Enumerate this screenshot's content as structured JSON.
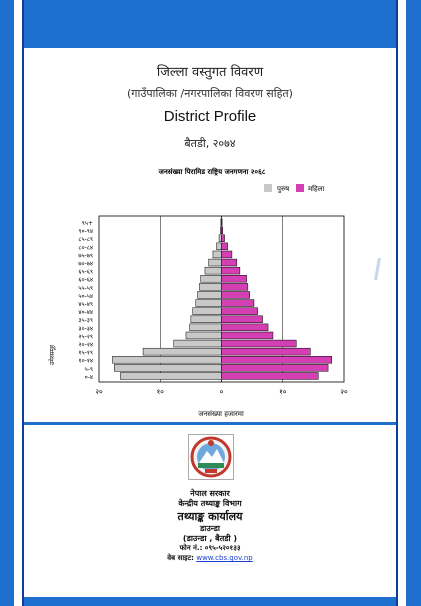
{
  "header": {
    "title_np": "जिल्ला वस्तुगत विवरण",
    "subtitle_np": "(गाउँपालिका /नगरपालिका विवरण सहित)",
    "title_en": "District Profile",
    "district_year": "बैतडी, २०७४"
  },
  "chart_data": {
    "type": "bar",
    "title": "जनसंख्या पिरामिड राष्ट्रिय जनगणना २०६८",
    "legend": [
      "पुरुष",
      "महिला"
    ],
    "legend_position": "top-right",
    "xlabel": "जनसंख्या हजारमा",
    "ylabel": "उमेरसमूह",
    "xlim": [
      -20,
      20
    ],
    "x_ticks": [
      "२०",
      "१०",
      "०",
      "१०",
      "२०"
    ],
    "colors": {
      "male": "#c8c8c8",
      "female": "#d43fb3"
    },
    "categories": [
      "०-४",
      "५-९",
      "१०-१४",
      "१५-१९",
      "२०-२४",
      "२५-२९",
      "३०-३४",
      "३५-३९",
      "४०-४४",
      "४५-४९",
      "५०-५४",
      "५५-५९",
      "६०-६४",
      "६५-६९",
      "७०-७४",
      "७५-७९",
      "८०-८४",
      "८५-८९",
      "९०-९४",
      "९५+"
    ],
    "series": [
      {
        "name": "पुरुष",
        "values": [
          16.5,
          17.5,
          17.8,
          12.8,
          7.8,
          5.8,
          5.2,
          5.0,
          4.7,
          4.2,
          3.9,
          3.6,
          3.4,
          2.7,
          2.1,
          1.4,
          0.8,
          0.4,
          0.2,
          0.1
        ]
      },
      {
        "name": "महिला",
        "values": [
          15.8,
          17.4,
          18.0,
          14.5,
          12.2,
          8.4,
          7.6,
          6.7,
          5.9,
          5.3,
          4.6,
          4.3,
          4.1,
          3.0,
          2.5,
          1.7,
          1.0,
          0.5,
          0.2,
          0.1
        ]
      }
    ]
  },
  "footer": {
    "org_line1": "नेपाल सरकार",
    "org_line2": "केन्द्रीय तथ्याङ्क विभाग",
    "org_line3": "तथ्याङ्क कार्यालय",
    "org_line4": "डाउन्डा",
    "org_line5": "(डाउन्डा , बैतडी )",
    "phone": "फोन नं.: ०९५-५२०१३३",
    "web_label": "वेब साइट:",
    "web_link": "www.cbs.gov.np"
  }
}
